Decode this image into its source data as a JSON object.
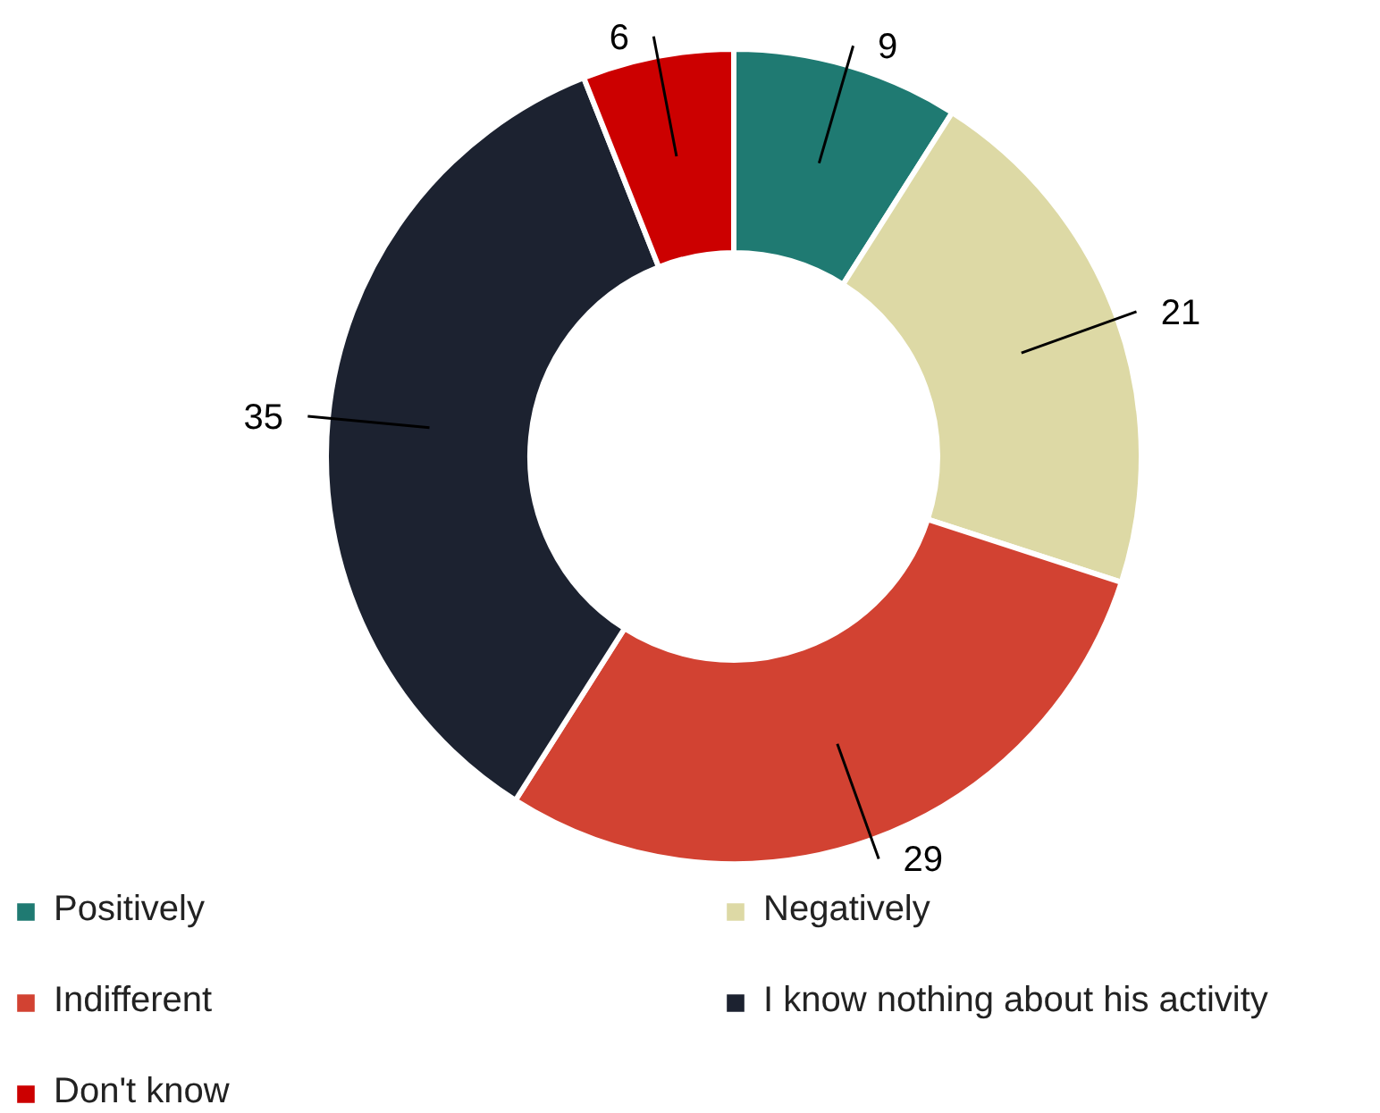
{
  "chart_data": {
    "type": "donut",
    "categories": [
      "Positively",
      "Negatively",
      "Indifferent",
      "I know nothing about his activity",
      "Don't know"
    ],
    "values": [
      9,
      21,
      29,
      35,
      6
    ],
    "colors": [
      "#1f7a72",
      "#ddd9a5",
      "#d24232",
      "#1c2230",
      "#cc0000"
    ],
    "data_labels": true,
    "legend": "bottom"
  }
}
